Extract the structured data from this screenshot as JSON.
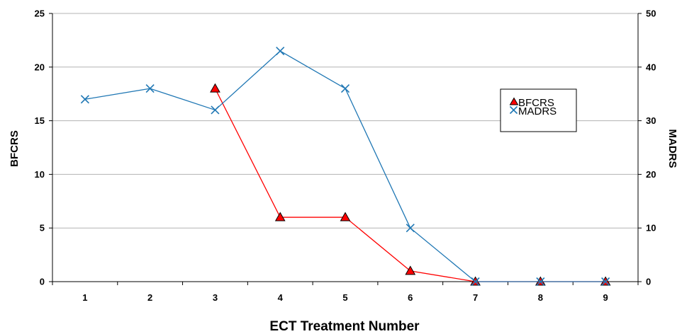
{
  "chart_data": {
    "type": "line",
    "xlabel": "ECT Treatment Number",
    "ylabel_left": "BFCRS",
    "ylabel_right": "MADRS",
    "x": [
      1,
      2,
      3,
      4,
      5,
      6,
      7,
      8,
      9
    ],
    "y_left_range": [
      0,
      25
    ],
    "y_left_ticks": [
      0,
      5,
      10,
      15,
      20,
      25
    ],
    "y_right_range": [
      0,
      50
    ],
    "y_right_ticks": [
      0,
      10,
      20,
      30,
      40,
      50
    ],
    "grid": true,
    "legend_position": "top-right",
    "series": [
      {
        "name": "BFCRS",
        "axis": "left",
        "marker": "triangle",
        "color": "#ff0000",
        "x": [
          3,
          4,
          5,
          6,
          7,
          8,
          9
        ],
        "values": [
          18,
          6,
          6,
          1,
          0,
          0,
          0
        ]
      },
      {
        "name": "MADRS",
        "axis": "right",
        "marker": "x",
        "color": "#1f77b4",
        "x": [
          1,
          2,
          3,
          4,
          5,
          6,
          7,
          8,
          9
        ],
        "values": [
          34,
          36,
          32,
          43,
          36,
          10,
          0,
          0,
          0
        ]
      }
    ]
  }
}
